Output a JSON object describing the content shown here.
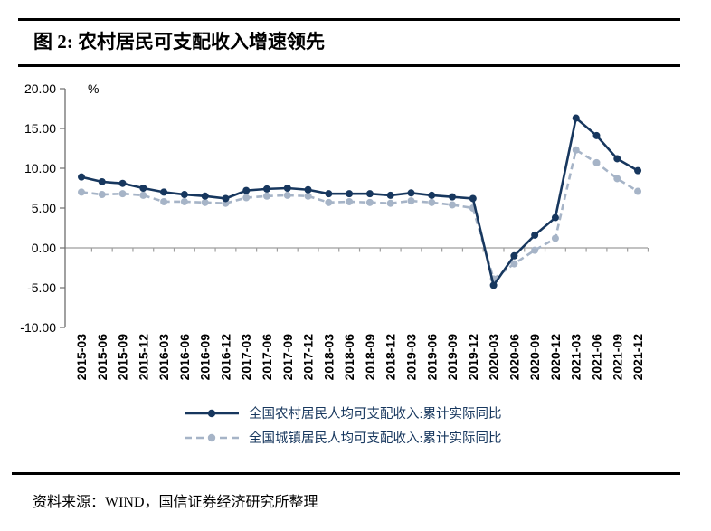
{
  "page": {
    "title": "图 2:  农村居民可支配收入增速领先",
    "source": "资料来源：WIND，国信证券经济研究所整理"
  },
  "colors": {
    "rural_line": "#17375E",
    "urban_line": "#A6B4C7",
    "y_axis": "#6e6e6e",
    "zero_line": "#9e9e9e",
    "tick_text": "#000000",
    "rule": "#000000",
    "legend_text": "#17375E"
  },
  "chart_data": {
    "type": "line",
    "unit_label": "%",
    "title": "",
    "xlabel": "",
    "ylabel": "%",
    "ylim": [
      -10,
      20
    ],
    "ytick_step": 5,
    "ytick_labels": [
      "20.00",
      "15.00",
      "10.00",
      "5.00",
      "0.00",
      "-5.00",
      "-10.00"
    ],
    "grid": false,
    "legend_position": "bottom",
    "categories": [
      "2015-03",
      "2015-06",
      "2015-09",
      "2015-12",
      "2016-03",
      "2016-06",
      "2016-09",
      "2016-12",
      "2017-03",
      "2017-06",
      "2017-09",
      "2017-12",
      "2018-03",
      "2018-06",
      "2018-09",
      "2018-12",
      "2019-03",
      "2019-06",
      "2019-09",
      "2019-12",
      "2020-03",
      "2020-06",
      "2020-09",
      "2020-12",
      "2021-03",
      "2021-06",
      "2021-09",
      "2021-12"
    ],
    "series": [
      {
        "name": "全国农村居民人均可支配收入:累计实际同比",
        "style": "solid",
        "color": "#17375E",
        "values": [
          8.9,
          8.3,
          8.1,
          7.5,
          7.0,
          6.7,
          6.5,
          6.2,
          7.2,
          7.4,
          7.5,
          7.3,
          6.8,
          6.8,
          6.8,
          6.6,
          6.9,
          6.6,
          6.4,
          6.2,
          -4.7,
          -1.0,
          1.6,
          3.8,
          16.3,
          14.1,
          11.2,
          9.7
        ]
      },
      {
        "name": "全国城镇居民人均可支配收入:累计实际同比",
        "style": "dashed",
        "color": "#A6B4C7",
        "values": [
          7.0,
          6.7,
          6.8,
          6.6,
          5.8,
          5.8,
          5.7,
          5.6,
          6.3,
          6.5,
          6.6,
          6.5,
          5.7,
          5.8,
          5.7,
          5.6,
          5.9,
          5.7,
          5.4,
          5.0,
          -3.9,
          -2.0,
          -0.3,
          1.2,
          12.3,
          10.7,
          8.7,
          7.1
        ]
      }
    ]
  }
}
